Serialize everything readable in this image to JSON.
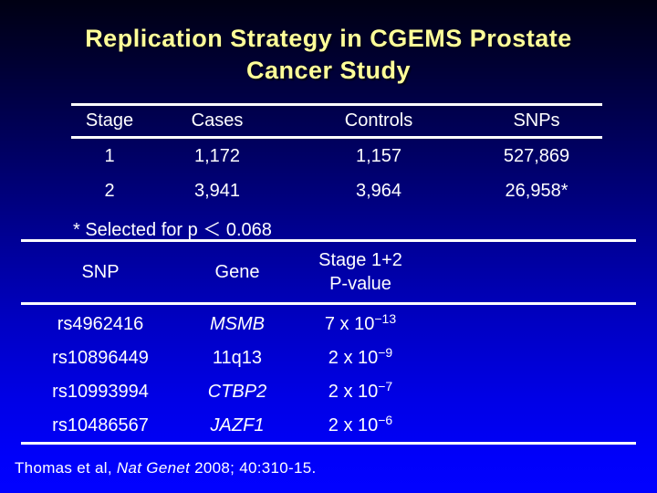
{
  "slide": {
    "title": "Replication Strategy in CGEMS Prostate Cancer Study",
    "colors": {
      "background_top": "#000013",
      "background_bottom": "#0202ff",
      "title_text": "#ffff99",
      "body_text": "#ffffff",
      "rule": "#ffffff"
    }
  },
  "table1": {
    "headers": [
      "Stage",
      "Cases",
      "Controls",
      "SNPs"
    ],
    "rows": [
      {
        "stage": "1",
        "cases": "1,172",
        "controls": "1,157",
        "snps": "527,869"
      },
      {
        "stage": "2",
        "cases": "3,941",
        "controls": "3,964",
        "snps": "26,958*"
      }
    ],
    "footnote": "* Selected for p ＜ 0.068"
  },
  "table2": {
    "headers": {
      "snp": "SNP",
      "gene": "Gene",
      "pvalue_line1": "Stage 1+2",
      "pvalue_line2": "P-value"
    },
    "rows": [
      {
        "snp": "rs4962416",
        "gene": "MSMB",
        "p_base": "7 x 10",
        "p_exp": "−13"
      },
      {
        "snp": "rs10896449",
        "gene": "11q13",
        "p_base": "2 x 10",
        "p_exp": "−9"
      },
      {
        "snp": "rs10993994",
        "gene": "CTBP2",
        "p_base": "2 x 10",
        "p_exp": "−7"
      },
      {
        "snp": "rs10486567",
        "gene": "JAZF1",
        "p_base": "2 x 10",
        "p_exp": "−6"
      }
    ]
  },
  "citation": {
    "prefix": "Thomas et al, ",
    "journal": "Nat Genet",
    "suffix": "  2008; 40:310-15."
  }
}
